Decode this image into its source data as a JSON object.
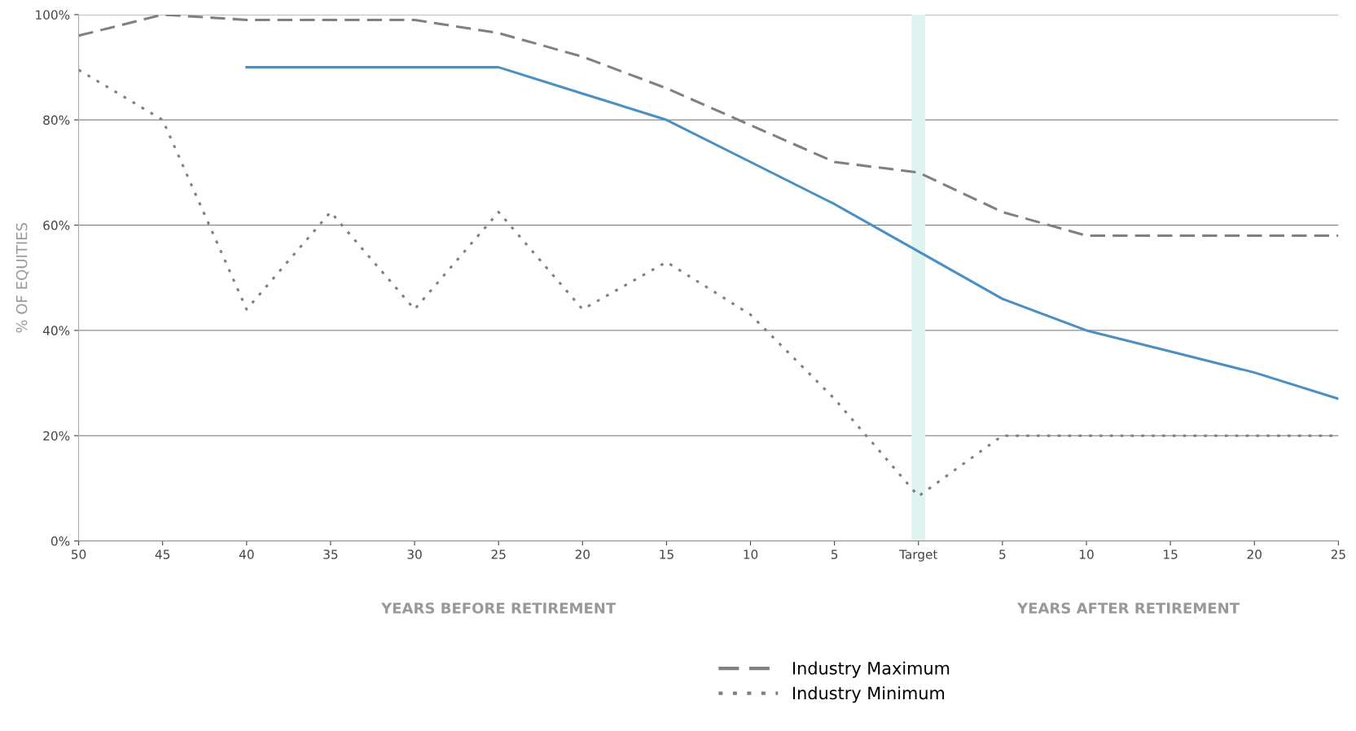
{
  "chart_data": {
    "type": "line",
    "categories": [
      "50",
      "45",
      "40",
      "35",
      "30",
      "25",
      "20",
      "15",
      "10",
      "5",
      "Target",
      "5",
      "10",
      "15",
      "20",
      "25"
    ],
    "series": [
      {
        "color": "#4a90c4",
        "line_style": "solid",
        "values": [
          null,
          null,
          90,
          90,
          90,
          90,
          85,
          80,
          72,
          64,
          55,
          46,
          40,
          36,
          32,
          27
        ]
      },
      {
        "name": "Industry Maximum",
        "color": "#808080",
        "line_style": "dashed",
        "values": [
          96,
          100,
          99,
          99,
          99,
          96.5,
          92,
          86,
          79,
          72,
          70,
          62.5,
          58,
          58,
          58,
          58
        ]
      },
      {
        "name": "Industry Minimum",
        "color": "#808080",
        "line_style": "dotted",
        "values": [
          89.5,
          80,
          44,
          62.5,
          44,
          62.5,
          44,
          53,
          43,
          27,
          8.5,
          20,
          20,
          20,
          20,
          20
        ]
      }
    ],
    "ylabel": "% OF EQUITIES",
    "annotations": [
      "YEARS BEFORE RETIREMENT",
      "YEARS AFTER RETIREMENT"
    ],
    "ref_lines": [
      {
        "axis": "x",
        "value": "Target",
        "color": "#dff4ef"
      }
    ],
    "ylim": [
      0,
      100
    ],
    "yticks": [
      {
        "value": 0,
        "label": "0%"
      },
      {
        "value": 20,
        "label": "20%"
      },
      {
        "value": 40,
        "label": "40%"
      },
      {
        "value": 60,
        "label": "60%"
      },
      {
        "value": 80,
        "label": "80%"
      },
      {
        "value": 100,
        "label": "100%"
      }
    ],
    "grid": "y",
    "legend": "bottom",
    "marker": "none"
  }
}
